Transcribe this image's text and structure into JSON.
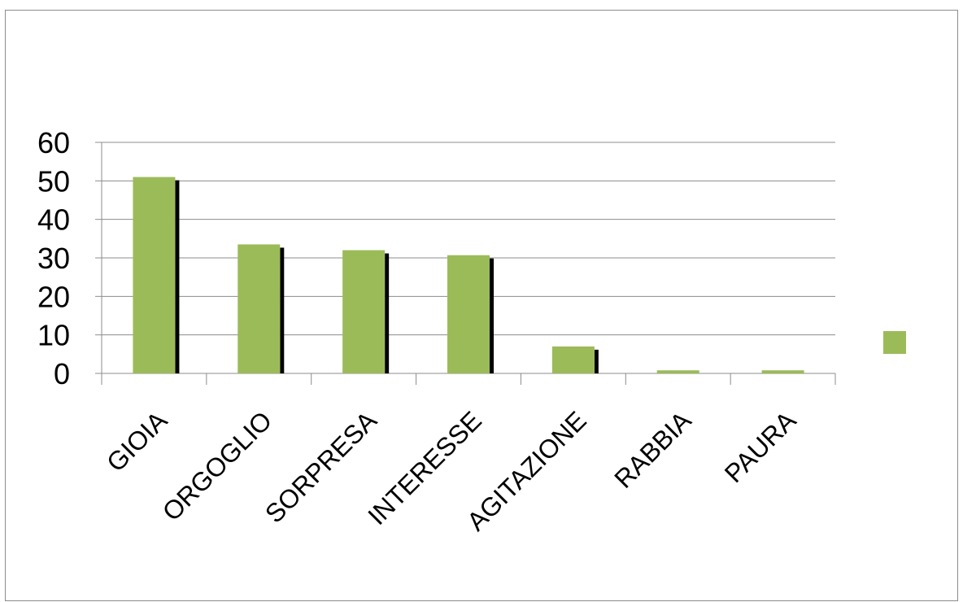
{
  "chart_data": {
    "type": "bar",
    "title": "",
    "xlabel": "",
    "ylabel": "",
    "categories": [
      "GIOIA",
      "ORGOGLIO",
      "SORPRESA",
      "INTERESSE",
      "AGITAZIONE",
      "RABBIA",
      "PAURA"
    ],
    "series": [
      {
        "values": [
          51,
          33.5,
          32,
          30.7,
          7,
          0.8,
          0.8
        ],
        "color": "#9bbb59",
        "shadow_color": "#000000"
      }
    ],
    "ylim": [
      0,
      60
    ],
    "yticks": [
      "0",
      "10",
      "20",
      "30",
      "40",
      "50",
      "60"
    ],
    "grid": true,
    "legend": {
      "position": "right",
      "entries": [
        {
          "label": "",
          "color": "#9bbb59"
        }
      ]
    }
  }
}
